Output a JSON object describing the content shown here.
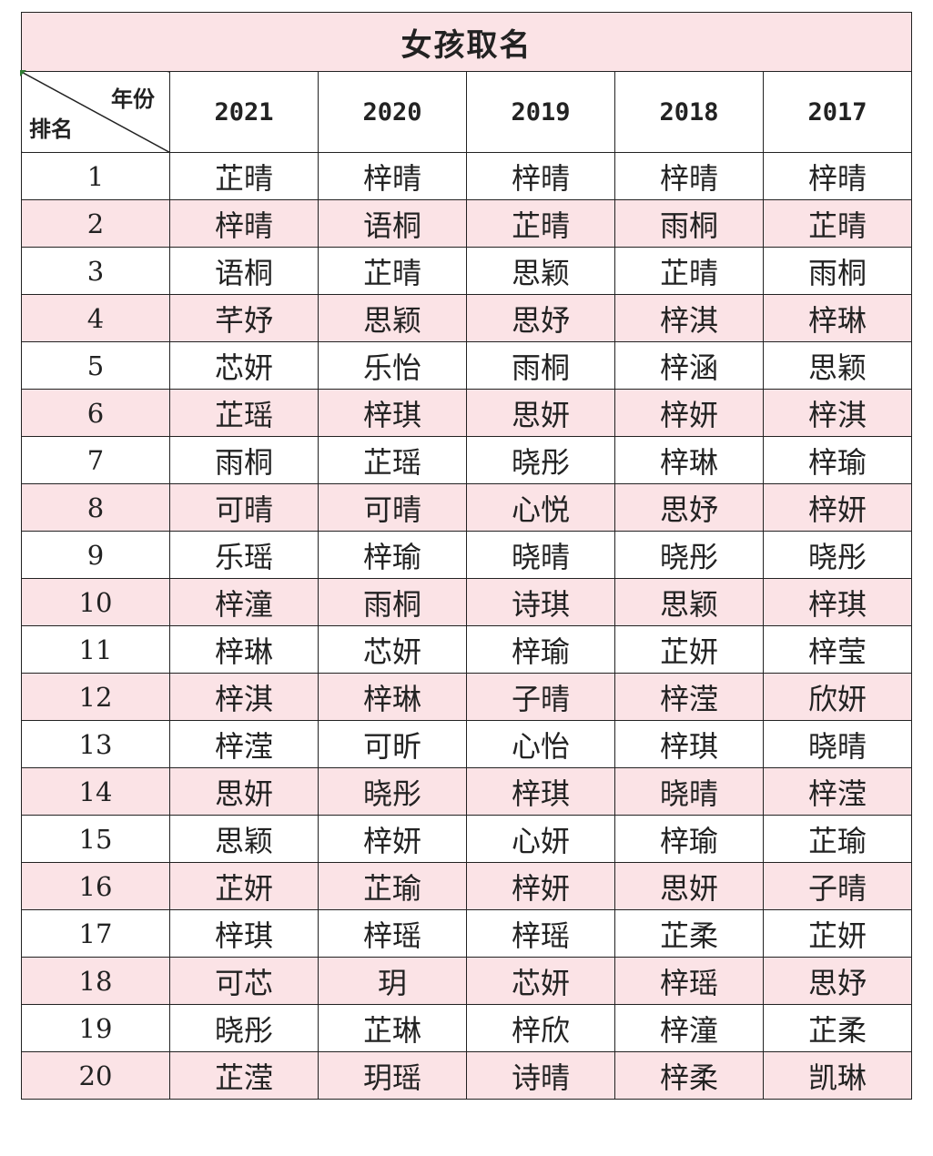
{
  "title": "女孩取名",
  "corner": {
    "year_label": "年份",
    "rank_label": "排名"
  },
  "years": [
    "2021",
    "2020",
    "2019",
    "2018",
    "2017"
  ],
  "rows": [
    {
      "rank": "1",
      "names": [
        "芷晴",
        "梓晴",
        "梓晴",
        "梓晴",
        "梓晴"
      ]
    },
    {
      "rank": "2",
      "names": [
        "梓晴",
        "语桐",
        "芷晴",
        "雨桐",
        "芷晴"
      ]
    },
    {
      "rank": "3",
      "names": [
        "语桐",
        "芷晴",
        "思颖",
        "芷晴",
        "雨桐"
      ]
    },
    {
      "rank": "4",
      "names": [
        "芊妤",
        "思颖",
        "思妤",
        "梓淇",
        "梓琳"
      ]
    },
    {
      "rank": "5",
      "names": [
        "芯妍",
        "乐怡",
        "雨桐",
        "梓涵",
        "思颖"
      ]
    },
    {
      "rank": "6",
      "names": [
        "芷瑶",
        "梓琪",
        "思妍",
        "梓妍",
        "梓淇"
      ]
    },
    {
      "rank": "7",
      "names": [
        "雨桐",
        "芷瑶",
        "晓彤",
        "梓琳",
        "梓瑜"
      ]
    },
    {
      "rank": "8",
      "names": [
        "可晴",
        "可晴",
        "心悦",
        "思妤",
        "梓妍"
      ]
    },
    {
      "rank": "9",
      "names": [
        "乐瑶",
        "梓瑜",
        "晓晴",
        "晓彤",
        "晓彤"
      ]
    },
    {
      "rank": "10",
      "names": [
        "梓潼",
        "雨桐",
        "诗琪",
        "思颖",
        "梓琪"
      ]
    },
    {
      "rank": "11",
      "names": [
        "梓琳",
        "芯妍",
        "梓瑜",
        "芷妍",
        "梓莹"
      ]
    },
    {
      "rank": "12",
      "names": [
        "梓淇",
        "梓琳",
        "子晴",
        "梓滢",
        "欣妍"
      ]
    },
    {
      "rank": "13",
      "names": [
        "梓滢",
        "可昕",
        "心怡",
        "梓琪",
        "晓晴"
      ]
    },
    {
      "rank": "14",
      "names": [
        "思妍",
        "晓彤",
        "梓琪",
        "晓晴",
        "梓滢"
      ]
    },
    {
      "rank": "15",
      "names": [
        "思颖",
        "梓妍",
        "心妍",
        "梓瑜",
        "芷瑜"
      ]
    },
    {
      "rank": "16",
      "names": [
        "芷妍",
        "芷瑜",
        "梓妍",
        "思妍",
        "子晴"
      ]
    },
    {
      "rank": "17",
      "names": [
        "梓琪",
        "梓瑶",
        "梓瑶",
        "芷柔",
        "芷妍"
      ]
    },
    {
      "rank": "18",
      "names": [
        "可芯",
        "玥",
        "芯妍",
        "梓瑶",
        "思妤"
      ]
    },
    {
      "rank": "19",
      "names": [
        "晓彤",
        "芷琳",
        "梓欣",
        "梓潼",
        "芷柔"
      ]
    },
    {
      "rank": "20",
      "names": [
        "芷滢",
        "玥瑶",
        "诗晴",
        "梓柔",
        "凯琳"
      ]
    }
  ],
  "colors": {
    "band": "#fbe3e6",
    "border": "#222222",
    "cell_marker": "#2e7d32"
  }
}
